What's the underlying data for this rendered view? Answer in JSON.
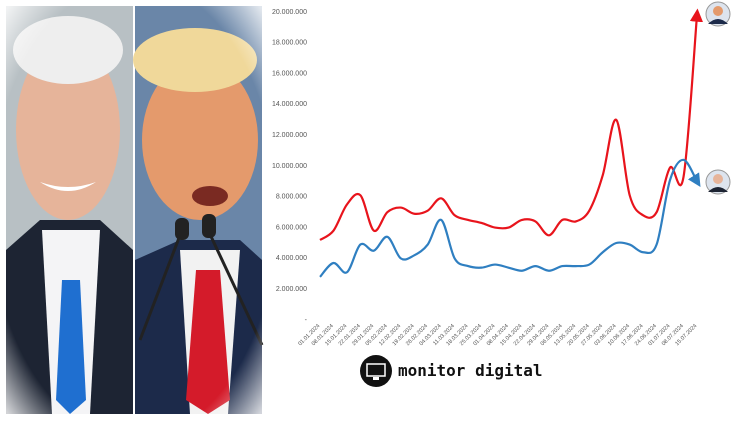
{
  "brand": "monitor digital",
  "chart_data": {
    "type": "line",
    "categories": [
      "01.01.2024",
      "08.01.2024",
      "15.01.2024",
      "22.01.2024",
      "29.01.2024",
      "05.02.2024",
      "12.02.2024",
      "19.02.2024",
      "26.02.2024",
      "04.03.2024",
      "11.03.2024",
      "18.03.2024",
      "25.03.2024",
      "01.04.2024",
      "08.04.2024",
      "15.04.2024",
      "22.04.2024",
      "29.04.2024",
      "06.05.2024",
      "13.05.2024",
      "20.05.2024",
      "27.05.2024",
      "03.06.2024",
      "10.06.2024",
      "17.06.2024",
      "24.06.2024",
      "01.07.2024",
      "08.07.2024",
      "15.07.2024"
    ],
    "series": [
      {
        "color": "#e8141c",
        "values": [
          5200000,
          5800000,
          7500000,
          8100000,
          5800000,
          7000000,
          7300000,
          6900000,
          7100000,
          7900000,
          6800000,
          6500000,
          6300000,
          6000000,
          6000000,
          6500000,
          6400000,
          5500000,
          6500000,
          6400000,
          7100000,
          9400000,
          13000000,
          8100000,
          6800000,
          7000000,
          9900000,
          9300000,
          19800000
        ]
      },
      {
        "color": "#2f7fc1",
        "values": [
          2800000,
          3700000,
          3100000,
          4900000,
          4500000,
          5400000,
          4000000,
          4200000,
          4900000,
          6500000,
          4000000,
          3500000,
          3400000,
          3600000,
          3400000,
          3200000,
          3500000,
          3200000,
          3500000,
          3500000,
          3600000,
          4400000,
          5000000,
          4900000,
          4400000,
          4900000,
          9100000,
          10400000,
          9000000
        ]
      }
    ],
    "ylim": [
      0,
      20000000
    ],
    "yticks": [
      {
        "value": 0,
        "label": "-"
      },
      {
        "value": 2000000,
        "label": "2.000.000"
      },
      {
        "value": 4000000,
        "label": "4.000.000"
      },
      {
        "value": 6000000,
        "label": "6.000.000"
      },
      {
        "value": 8000000,
        "label": "8.000.000"
      },
      {
        "value": 10000000,
        "label": "10.000.000"
      },
      {
        "value": 12000000,
        "label": "12.000.000"
      },
      {
        "value": 14000000,
        "label": "14.000.000"
      },
      {
        "value": 16000000,
        "label": "16.000.000"
      },
      {
        "value": 18000000,
        "label": "18.000.000"
      },
      {
        "value": 20000000,
        "label": "20.000.000"
      }
    ],
    "grid": false
  }
}
